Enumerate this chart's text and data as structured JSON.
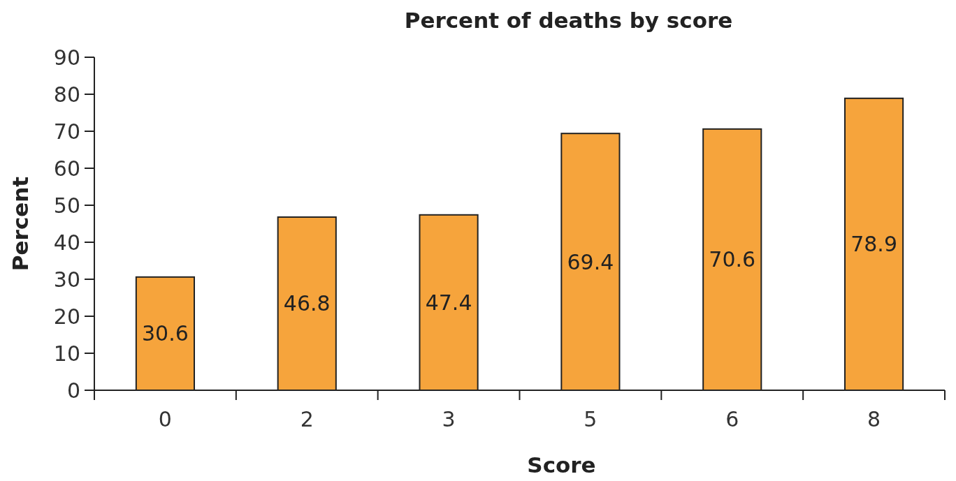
{
  "chart_data": {
    "type": "bar",
    "title": "Percent of deaths by score",
    "xlabel": "Score",
    "ylabel": "Percent",
    "categories": [
      "0",
      "2",
      "3",
      "5",
      "6",
      "8"
    ],
    "values": [
      30.6,
      46.8,
      47.4,
      69.4,
      70.6,
      78.9
    ],
    "color": "#f6a43c",
    "ylim": [
      0,
      90
    ],
    "yticks": [
      0,
      10,
      20,
      30,
      40,
      50,
      60,
      70,
      80,
      90
    ],
    "grid": false,
    "data_labels": true
  }
}
